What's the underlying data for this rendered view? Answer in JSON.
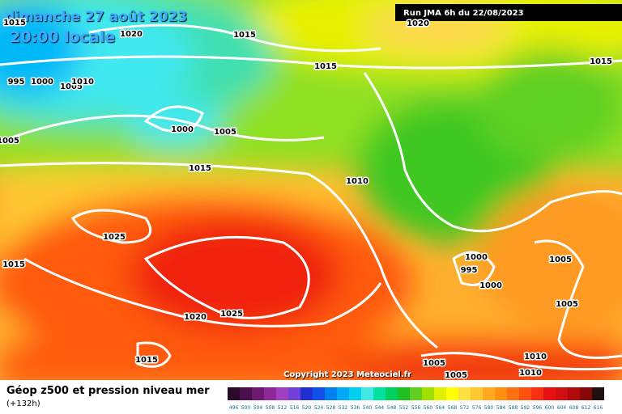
{
  "header": {
    "date": "dimanche 27 août 2023",
    "time": "20:00 locale",
    "run": "Run JMA 6h du 22/08/2023"
  },
  "isobars": [
    "1015",
    "1020",
    "1015",
    "1020",
    "1015",
    "1015",
    "995",
    "1000",
    "1005",
    "1010",
    "1000",
    "1005",
    "1005",
    "1015",
    "1010",
    "1025",
    "1015",
    "1000",
    "995",
    "1000",
    "1005",
    "1005",
    "1020",
    "1025",
    "1015",
    "1010",
    "1005",
    "1010",
    "1005"
  ],
  "copyright": "Copyright 2023 Meteociel.fr",
  "legend": {
    "title": "Géop z500 et pression niveau mer",
    "subtitle": "(+132h)",
    "scale": [
      {
        "label": "496",
        "color": "#2a0a2a"
      },
      {
        "label": "500",
        "color": "#4b0f4b"
      },
      {
        "label": "504",
        "color": "#6e1870"
      },
      {
        "label": "508",
        "color": "#8e2896"
      },
      {
        "label": "512",
        "color": "#a040c0"
      },
      {
        "label": "516",
        "color": "#7040d8"
      },
      {
        "label": "520",
        "color": "#2030d0"
      },
      {
        "label": "524",
        "color": "#1050e8"
      },
      {
        "label": "528",
        "color": "#0080f0"
      },
      {
        "label": "532",
        "color": "#00a8f8"
      },
      {
        "label": "536",
        "color": "#00d0f0"
      },
      {
        "label": "540",
        "color": "#40e8e8"
      },
      {
        "label": "544",
        "color": "#00e0a0"
      },
      {
        "label": "548",
        "color": "#00d060"
      },
      {
        "label": "552",
        "color": "#20c020"
      },
      {
        "label": "556",
        "color": "#60d020"
      },
      {
        "label": "560",
        "color": "#a0e000"
      },
      {
        "label": "564",
        "color": "#e0f000"
      },
      {
        "label": "568",
        "color": "#ffff00"
      },
      {
        "label": "572",
        "color": "#ffe040"
      },
      {
        "label": "576",
        "color": "#ffc830"
      },
      {
        "label": "580",
        "color": "#ffa820"
      },
      {
        "label": "584",
        "color": "#ff9010"
      },
      {
        "label": "588",
        "color": "#ff7010"
      },
      {
        "label": "592",
        "color": "#ff5010"
      },
      {
        "label": "596",
        "color": "#f83010"
      },
      {
        "label": "600",
        "color": "#e81010"
      },
      {
        "label": "604",
        "color": "#d01010"
      },
      {
        "label": "608",
        "color": "#b00a0a"
      },
      {
        "label": "612",
        "color": "#880808"
      },
      {
        "label": "616",
        "color": "#201010"
      }
    ]
  }
}
